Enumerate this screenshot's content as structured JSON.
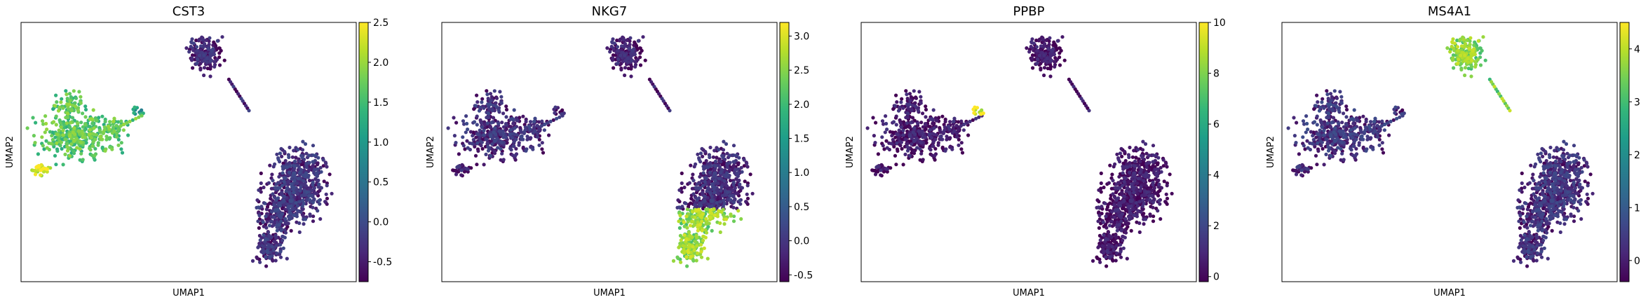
{
  "chart_data": [
    {
      "type": "scatter",
      "title": "CST3",
      "xlabel": "UMAP1",
      "ylabel": "UMAP2",
      "colormap": "viridis",
      "color_range": [
        -0.75,
        2.5
      ],
      "colorbar_ticks": [
        "-0.5",
        "0.0",
        "0.5",
        "1.0",
        "1.5",
        "2.0",
        "2.5"
      ],
      "colorbar_tick_values": [
        -0.5,
        0.0,
        0.5,
        1.0,
        1.5,
        2.0,
        2.5
      ],
      "grid": false,
      "cluster_values": {
        "nk_t": -0.4,
        "b": -0.5,
        "mono": 1.6,
        "tail": 2.3,
        "platelet": 1.0
      }
    },
    {
      "type": "scatter",
      "title": "NKG7",
      "xlabel": "UMAP1",
      "ylabel": "UMAP2",
      "colormap": "viridis",
      "color_range": [
        -0.6,
        3.2
      ],
      "colorbar_ticks": [
        "-0.5",
        "0.0",
        "0.5",
        "1.0",
        "1.5",
        "2.0",
        "2.5",
        "3.0"
      ],
      "colorbar_tick_values": [
        -0.5,
        0.0,
        0.5,
        1.0,
        1.5,
        2.0,
        2.5,
        3.0
      ],
      "grid": false,
      "cluster_values": {
        "nk_t": -0.3,
        "b": -0.4,
        "mono": -0.2,
        "tail": -0.4,
        "platelet": -0.4,
        "nk_bottom": 2.5
      }
    },
    {
      "type": "scatter",
      "title": "PPBP",
      "xlabel": "UMAP1",
      "ylabel": "UMAP2",
      "colormap": "viridis",
      "color_range": [
        -0.2,
        10
      ],
      "colorbar_ticks": [
        "0",
        "2",
        "4",
        "6",
        "8",
        "10"
      ],
      "colorbar_tick_values": [
        0,
        2,
        4,
        6,
        8,
        10
      ],
      "grid": false,
      "cluster_values": {
        "nk_t": 0.0,
        "b": 0.0,
        "mono": 0.2,
        "tail": 0.0,
        "platelet": 9.5
      }
    },
    {
      "type": "scatter",
      "title": "MS4A1",
      "xlabel": "UMAP1",
      "ylabel": "UMAP2",
      "colormap": "viridis",
      "color_range": [
        -0.4,
        4.5
      ],
      "colorbar_ticks": [
        "0",
        "1",
        "2",
        "3",
        "4"
      ],
      "colorbar_tick_values": [
        0,
        1,
        2,
        3,
        4
      ],
      "grid": false,
      "cluster_values": {
        "nk_t": 0.1,
        "b": 3.5,
        "mono": 0.2,
        "tail": 0.0,
        "platelet": 0.1
      }
    }
  ]
}
